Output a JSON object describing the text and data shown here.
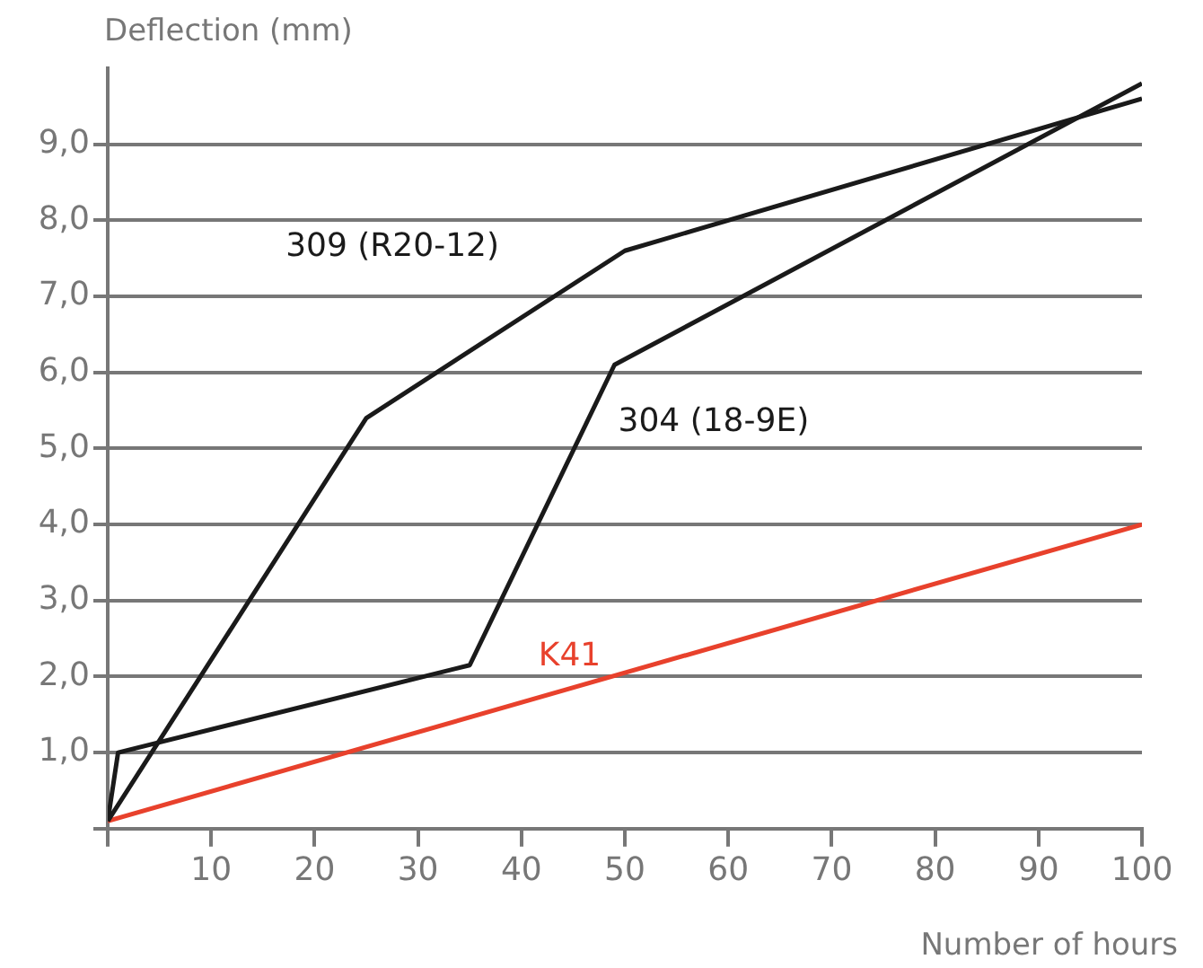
{
  "chart_data": {
    "type": "line",
    "xlabel": "Number of hours",
    "ylabel": "Deflection (mm)",
    "series": [
      {
        "name": "309 (R20-12)",
        "color": "#1a1a1a",
        "x": [
          0,
          25,
          50,
          100
        ],
        "values": [
          0.1,
          5.4,
          7.6,
          9.6
        ]
      },
      {
        "name": "304 (18-9E)",
        "color": "#1a1a1a",
        "x": [
          0,
          1,
          35,
          49,
          100
        ],
        "values": [
          0.1,
          1.0,
          2.15,
          6.1,
          9.8
        ]
      },
      {
        "name": "K41",
        "color": "#e8412c",
        "x": [
          0,
          100
        ],
        "values": [
          0.1,
          4.0
        ]
      }
    ],
    "xlim": [
      0,
      100
    ],
    "ylim": [
      0,
      10
    ],
    "xticks": [
      {
        "value": 0,
        "label": null
      },
      10,
      20,
      30,
      40,
      50,
      60,
      70,
      80,
      90,
      100
    ],
    "yticks": [
      {
        "value": 0,
        "label": null
      },
      {
        "value": 1,
        "label": "1,0"
      },
      {
        "value": 2,
        "label": "2,0"
      },
      {
        "value": 3,
        "label": "3,0"
      },
      {
        "value": 4,
        "label": "4,0"
      },
      {
        "value": 5,
        "label": "5,0"
      },
      {
        "value": 6,
        "label": "6,0"
      },
      {
        "value": 7,
        "label": "7,0"
      },
      {
        "value": 8,
        "label": "8,0"
      },
      {
        "value": 9,
        "label": "9,0"
      }
    ],
    "grid": "y",
    "legend": false,
    "marker": "none",
    "line_style": "solid"
  }
}
